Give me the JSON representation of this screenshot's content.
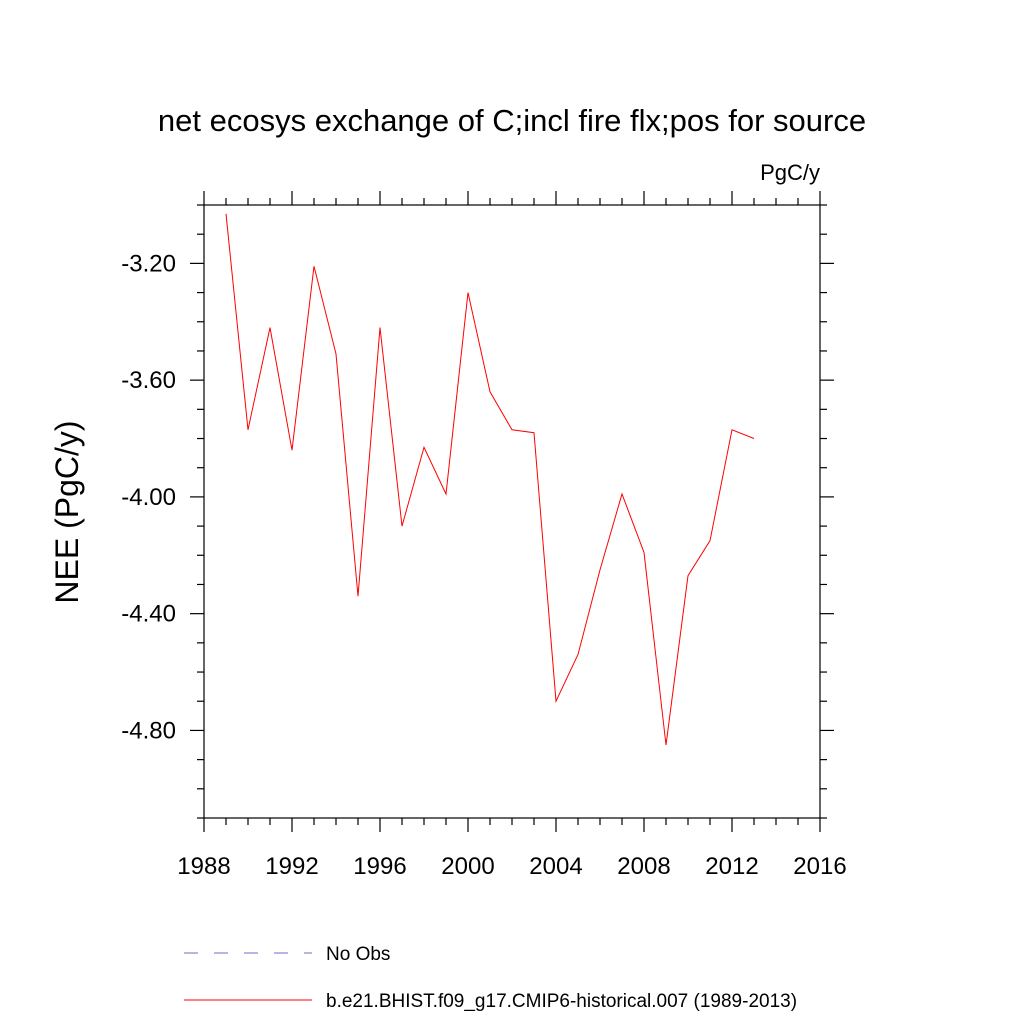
{
  "chart_data": {
    "type": "line",
    "title": "net ecosys exchange of C;incl fire flx;pos for source",
    "units_label": "PgC/y",
    "xlabel": "",
    "ylabel": "NEE  (PgC/y)",
    "xlim": [
      1988,
      2016
    ],
    "ylim": [
      -5.1,
      -3.0
    ],
    "x_ticks": [
      1988,
      1992,
      1996,
      2000,
      2004,
      2008,
      2012,
      2016
    ],
    "x_minor_step": 1,
    "y_ticks": [
      -4.8,
      -4.4,
      -4.0,
      -3.6,
      -3.2
    ],
    "y_tick_labels": [
      "-4.80",
      "-4.40",
      "-4.00",
      "-3.60",
      "-3.20"
    ],
    "y_minor_step": 0.1,
    "series": [
      {
        "name": "b.e21.BHIST.f09_g17.CMIP6-historical.007 (1989-2013)",
        "color": "#ff0000",
        "style": "solid",
        "x": [
          1989,
          1990,
          1991,
          1992,
          1993,
          1994,
          1995,
          1996,
          1997,
          1998,
          1999,
          2000,
          2001,
          2002,
          2003,
          2004,
          2005,
          2006,
          2007,
          2008,
          2009,
          2010,
          2011,
          2012,
          2013
        ],
        "values": [
          -3.03,
          -3.77,
          -3.42,
          -3.84,
          -3.21,
          -3.51,
          -4.34,
          -3.42,
          -4.1,
          -3.83,
          -3.99,
          -3.3,
          -3.64,
          -3.77,
          -3.78,
          -4.7,
          -4.54,
          -4.25,
          -3.99,
          -4.19,
          -4.85,
          -4.27,
          -4.15,
          -3.77,
          -3.8
        ]
      }
    ],
    "legend": [
      {
        "label": "No Obs",
        "color": "#6e6ec8",
        "style": "dashed"
      },
      {
        "label": "b.e21.BHIST.f09_g17.CMIP6-historical.007 (1989-2013)",
        "color": "#ff0000",
        "style": "solid"
      }
    ],
    "legend_position": "bottom"
  }
}
